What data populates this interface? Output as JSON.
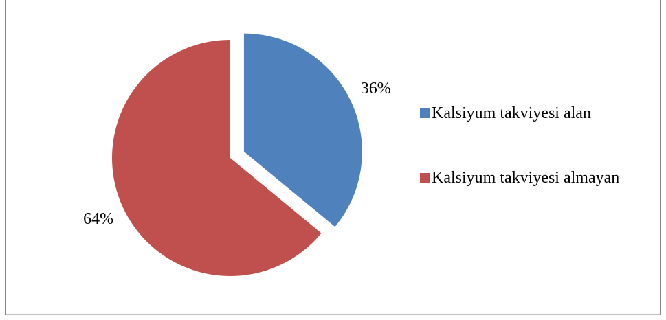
{
  "chart_data": {
    "type": "pie",
    "categories": [
      "Kalsiyum takviyesi alan",
      "Kalsiyum takviyesi almayan"
    ],
    "values": [
      36,
      64
    ],
    "value_labels": [
      "36%",
      "64%"
    ],
    "colors": [
      "#4f81bd",
      "#c0504d"
    ],
    "legend": "right"
  }
}
